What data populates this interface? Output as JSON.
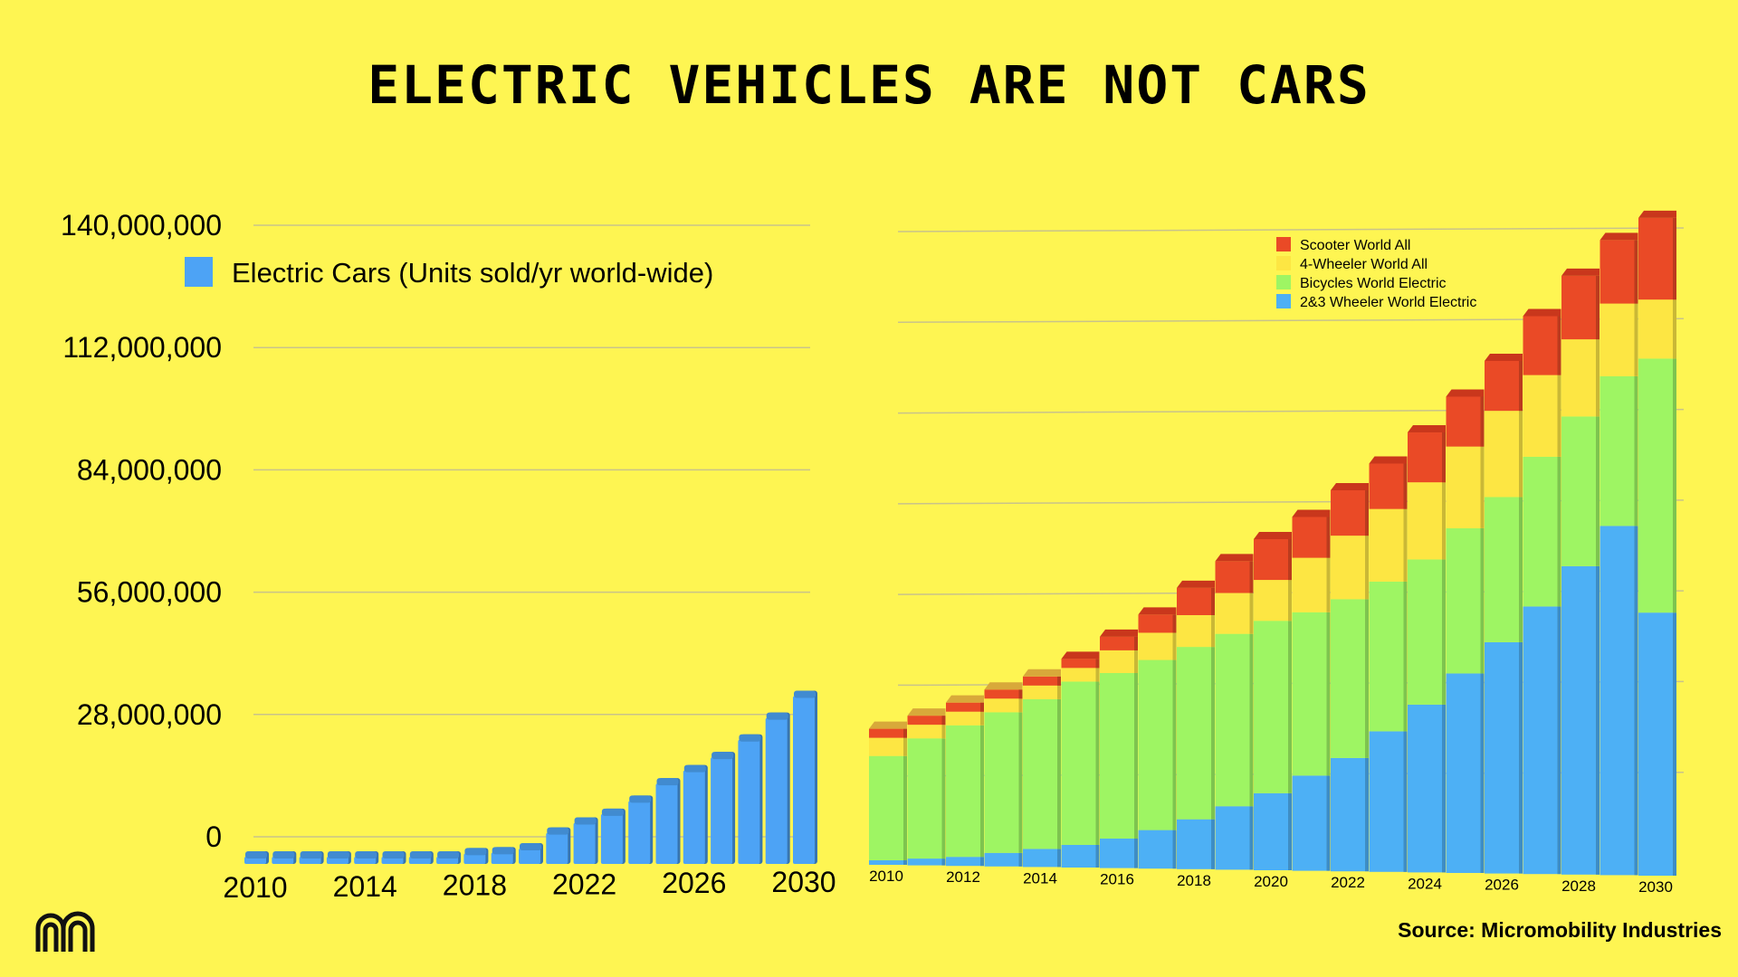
{
  "title": "ELECTRIC VEHICLES ARE NOT CARS",
  "source": "Source: Micromobility Industries",
  "logo_icon": "micromobility-logo-icon",
  "chart_data": [
    {
      "type": "bar",
      "title": "",
      "legend": "Electric Cars (Units sold/yr world-wide)",
      "legend_position": "top",
      "color": "#4da3f5",
      "xlabel": "",
      "ylabel": "",
      "ylim": [
        0,
        140000000
      ],
      "yticks": [
        0,
        28000000,
        56000000,
        84000000,
        112000000,
        140000000
      ],
      "ytick_labels": [
        "0",
        "28,000,000",
        "56,000,000",
        "84,000,000",
        "112,000,000",
        "140,000,000"
      ],
      "xtick_labels": [
        "2010",
        "2014",
        "2018",
        "2022",
        "2026",
        "2030"
      ],
      "grid": true,
      "categories": [
        "2010",
        "2011",
        "2012",
        "2013",
        "2014",
        "2015",
        "2016",
        "2017",
        "2018",
        "2019",
        "2020",
        "2021",
        "2022",
        "2023",
        "2024",
        "2025",
        "2026",
        "2027",
        "2028",
        "2029",
        "2030"
      ],
      "values": [
        10000,
        40000,
        120000,
        200000,
        320000,
        550000,
        750000,
        1200000,
        2000000,
        2200000,
        3100000,
        6700000,
        9000000,
        11000000,
        14000000,
        18000000,
        21000000,
        24000000,
        28000000,
        33000000,
        38000000
      ]
    },
    {
      "type": "bar",
      "stacked": true,
      "title": "",
      "legend_position": "top-right",
      "xlabel": "",
      "ylabel": "",
      "ylim": [
        0,
        140000000
      ],
      "grid": true,
      "xtick_labels": [
        "2010",
        "2012",
        "2014",
        "2016",
        "2018",
        "2020",
        "2022",
        "2024",
        "2026",
        "2028",
        "2030"
      ],
      "categories": [
        "2010",
        "2011",
        "2012",
        "2013",
        "2014",
        "2015",
        "2016",
        "2017",
        "2018",
        "2019",
        "2020",
        "2021",
        "2022",
        "2023",
        "2024",
        "2025",
        "2026",
        "2027",
        "2028",
        "2029",
        "2030"
      ],
      "series": [
        {
          "name": "2&3 Wheeler World Electric",
          "color": "#4db0f5",
          "values": [
            1000000,
            1500000,
            2000000,
            3000000,
            4000000,
            5000000,
            6500000,
            8500000,
            11000000,
            14000000,
            17000000,
            21000000,
            25000000,
            31000000,
            37000000,
            44000000,
            51000000,
            59000000,
            68000000,
            77000000,
            58000000
          ]
        },
        {
          "name": "Bicycles World Electric",
          "color": "#9ef563",
          "values": [
            24000000,
            28000000,
            31000000,
            34000000,
            37000000,
            41000000,
            43000000,
            46000000,
            49000000,
            52000000,
            55000000,
            57000000,
            60000000,
            64000000,
            69000000,
            76000000,
            83000000,
            92000000,
            101000000,
            110000000,
            114000000
          ]
        },
        {
          "name": "4-Wheeler World All",
          "color": "#fde643",
          "values": [
            28000000,
            31000000,
            34000000,
            37000000,
            40000000,
            44000000,
            48000000,
            52000000,
            56000000,
            61000000,
            64000000,
            69000000,
            74000000,
            80000000,
            86000000,
            94000000,
            102000000,
            110000000,
            118000000,
            126000000,
            127000000
          ]
        },
        {
          "name": "Scooter World All",
          "color": "#ea4a26",
          "values": [
            30000000,
            33000000,
            36000000,
            39000000,
            42000000,
            46000000,
            51000000,
            56000000,
            62000000,
            68000000,
            73000000,
            78000000,
            84000000,
            90000000,
            97000000,
            105000000,
            113000000,
            123000000,
            132000000,
            140000000,
            145000000
          ]
        }
      ],
      "series_note": "values above are cumulative stack tops per series (bottom to top)"
    }
  ]
}
